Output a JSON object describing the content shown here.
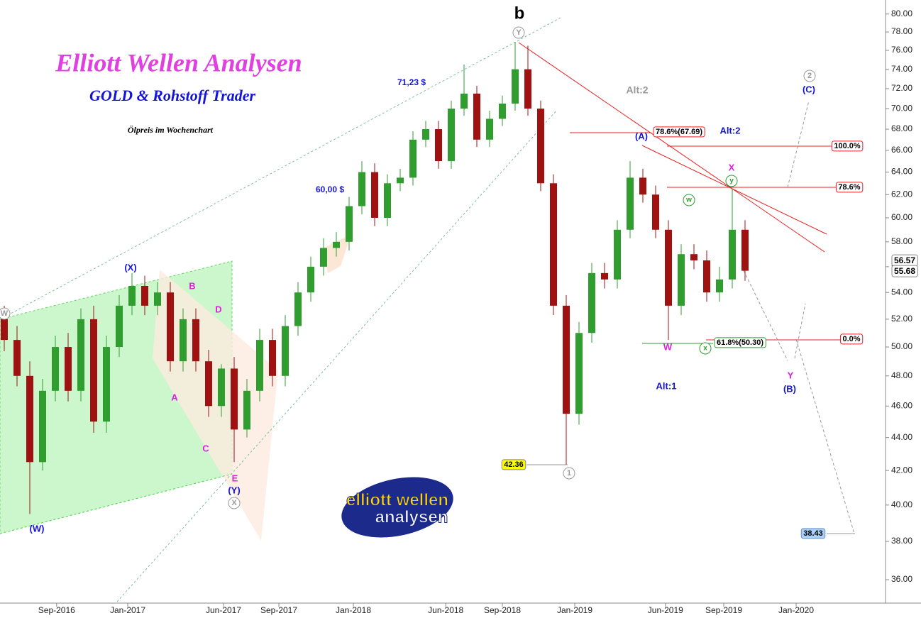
{
  "chart_data": {
    "type": "candlestick",
    "log_y": true,
    "up_color": "#2f9e2f",
    "down_color": "#a01212",
    "xlim": [
      0,
      208
    ],
    "ylim": [
      34.9,
      81.6
    ],
    "xticks": [
      {
        "value": 13.3,
        "label": "Sep-2016"
      },
      {
        "value": 30,
        "label": "Jan-2017"
      },
      {
        "value": 52.5,
        "label": "Jun-2017"
      },
      {
        "value": 65.5,
        "label": "Sep-2017"
      },
      {
        "value": 83,
        "label": "Jan-2018"
      },
      {
        "value": 104.7,
        "label": "Jun-2018"
      },
      {
        "value": 118,
        "label": "Sep-2018"
      },
      {
        "value": 135,
        "label": "Jan-2019"
      },
      {
        "value": 156.3,
        "label": "Jun-2019"
      },
      {
        "value": 170,
        "label": "Sep-2019"
      },
      {
        "value": 187,
        "label": "Jan-2020"
      }
    ],
    "yticks": [
      {
        "value": 36,
        "label": "36.00"
      },
      {
        "value": 38,
        "label": "38.00"
      },
      {
        "value": 40,
        "label": "40.00"
      },
      {
        "value": 42,
        "label": "42.00"
      },
      {
        "value": 44,
        "label": "44.00"
      },
      {
        "value": 46,
        "label": "46.00"
      },
      {
        "value": 48,
        "label": "48.00"
      },
      {
        "value": 50,
        "label": "50.00"
      },
      {
        "value": 52,
        "label": "52.00"
      },
      {
        "value": 54,
        "label": "54.00"
      },
      {
        "value": 56,
        "label": "56.00"
      },
      {
        "value": 58,
        "label": "58.00"
      },
      {
        "value": 60,
        "label": "60.00"
      },
      {
        "value": 62,
        "label": "62.00"
      },
      {
        "value": 64,
        "label": "64.00"
      },
      {
        "value": 66,
        "label": "66.00"
      },
      {
        "value": 68,
        "label": "68.00"
      },
      {
        "value": 70,
        "label": "70.00"
      },
      {
        "value": 72,
        "label": "72.00"
      },
      {
        "value": 74,
        "label": "74.00"
      },
      {
        "value": 76,
        "label": "76.00"
      },
      {
        "value": 78,
        "label": "78.00"
      },
      {
        "value": 80,
        "label": "80.00"
      }
    ],
    "x": [
      1,
      4,
      7,
      10,
      13,
      16,
      19,
      22,
      25,
      28,
      31,
      34,
      37,
      40,
      43,
      46,
      49,
      52,
      55,
      58,
      61,
      64,
      67,
      70,
      73,
      76,
      79,
      82,
      85,
      88,
      91,
      94,
      97,
      100,
      103,
      106,
      109,
      112,
      115,
      118,
      121,
      124,
      127,
      130,
      133,
      136,
      139,
      142,
      145,
      148,
      151,
      154,
      157,
      160,
      163,
      166,
      169,
      172,
      175
    ],
    "open": [
      52,
      50.5,
      48,
      42.5,
      47,
      50,
      47,
      52,
      45,
      50,
      53,
      54.5,
      53,
      54,
      49,
      52,
      49,
      46,
      48.5,
      44.5,
      47,
      50.5,
      48,
      51.5,
      54,
      56,
      57.5,
      58,
      61,
      64,
      60,
      63,
      63.5,
      67,
      68,
      65,
      70,
      71.5,
      67,
      69,
      70.5,
      74,
      70,
      63,
      53,
      45.5,
      51,
      55.5,
      55,
      59,
      63.5,
      62,
      59,
      53,
      57,
      56.5,
      54,
      55,
      59
    ],
    "high": [
      53,
      51.5,
      49,
      47.8,
      50.8,
      51,
      52.8,
      53,
      50.8,
      53.8,
      55.5,
      55.3,
      54.8,
      54.8,
      52.8,
      52.8,
      49.8,
      48.8,
      49.3,
      47.8,
      51.3,
      51.3,
      52.3,
      54.8,
      56.8,
      58.3,
      58.8,
      61.8,
      65,
      64.8,
      63.8,
      64.3,
      67.8,
      68.8,
      68.8,
      70.8,
      74.5,
      72.3,
      69.8,
      71.3,
      76.9,
      76.5,
      70.8,
      63.8,
      53.8,
      51.8,
      56.3,
      56.3,
      59.8,
      65,
      64.3,
      62.8,
      59.8,
      57.8,
      57.8,
      57.3,
      56,
      62.5,
      59.8
    ],
    "low": [
      49.7,
      47.3,
      39.5,
      42,
      46.3,
      46.3,
      46.3,
      44.3,
      44.3,
      49.3,
      52.3,
      52.3,
      52.3,
      48.3,
      48.3,
      48.3,
      45.3,
      45.3,
      42.5,
      44,
      46.3,
      47.3,
      47.3,
      50.8,
      53.3,
      55.3,
      56.8,
      57.3,
      60.3,
      59.3,
      59.3,
      62.3,
      62.8,
      66.3,
      64.3,
      64.3,
      69.3,
      66.3,
      66.3,
      68.3,
      69.8,
      69.3,
      62.3,
      52.3,
      42.36,
      44.8,
      50.3,
      54.3,
      54.3,
      58.3,
      61.3,
      58.3,
      50.5,
      52.3,
      55.8,
      53.3,
      53.3,
      54.3,
      54.9
    ],
    "close": [
      50.5,
      48,
      42.5,
      47,
      50,
      47,
      52,
      45,
      50,
      53,
      54.5,
      53,
      54,
      49,
      52,
      49,
      46,
      48.5,
      44.5,
      47,
      50.5,
      48,
      51.5,
      54,
      56,
      57.5,
      58,
      61,
      64,
      60,
      63,
      63.5,
      67,
      68,
      65,
      70,
      71.5,
      67,
      69,
      70.5,
      74,
      70,
      63,
      53,
      45.5,
      51,
      55.5,
      55,
      59,
      63.5,
      62,
      59,
      53,
      57,
      56.5,
      54,
      55,
      59,
      55.68
    ],
    "annotations": [
      "b",
      "Y",
      "Elliott Wellen Analysen",
      "GOLD & Rohstoff Trader",
      "Ölpreis im Wochenchart",
      "71,23 $",
      "60,00 $",
      "Alt:2",
      "(A)",
      "78.6%(67.69)",
      "Alt:2",
      "100.0%",
      "X",
      "y",
      "78.6%",
      "w",
      "61.8%(50.30)",
      "0.0%",
      "W",
      "x",
      "Alt:1",
      "Y",
      "(B)",
      "2",
      "(C)",
      "42.36",
      "1",
      "38.43",
      "(X)",
      "B",
      "D",
      "A",
      "C",
      "E",
      "(Y)",
      "X",
      "(W)",
      "W",
      "56.57",
      "55.68",
      "elliott wellen",
      "analysen"
    ]
  }
}
